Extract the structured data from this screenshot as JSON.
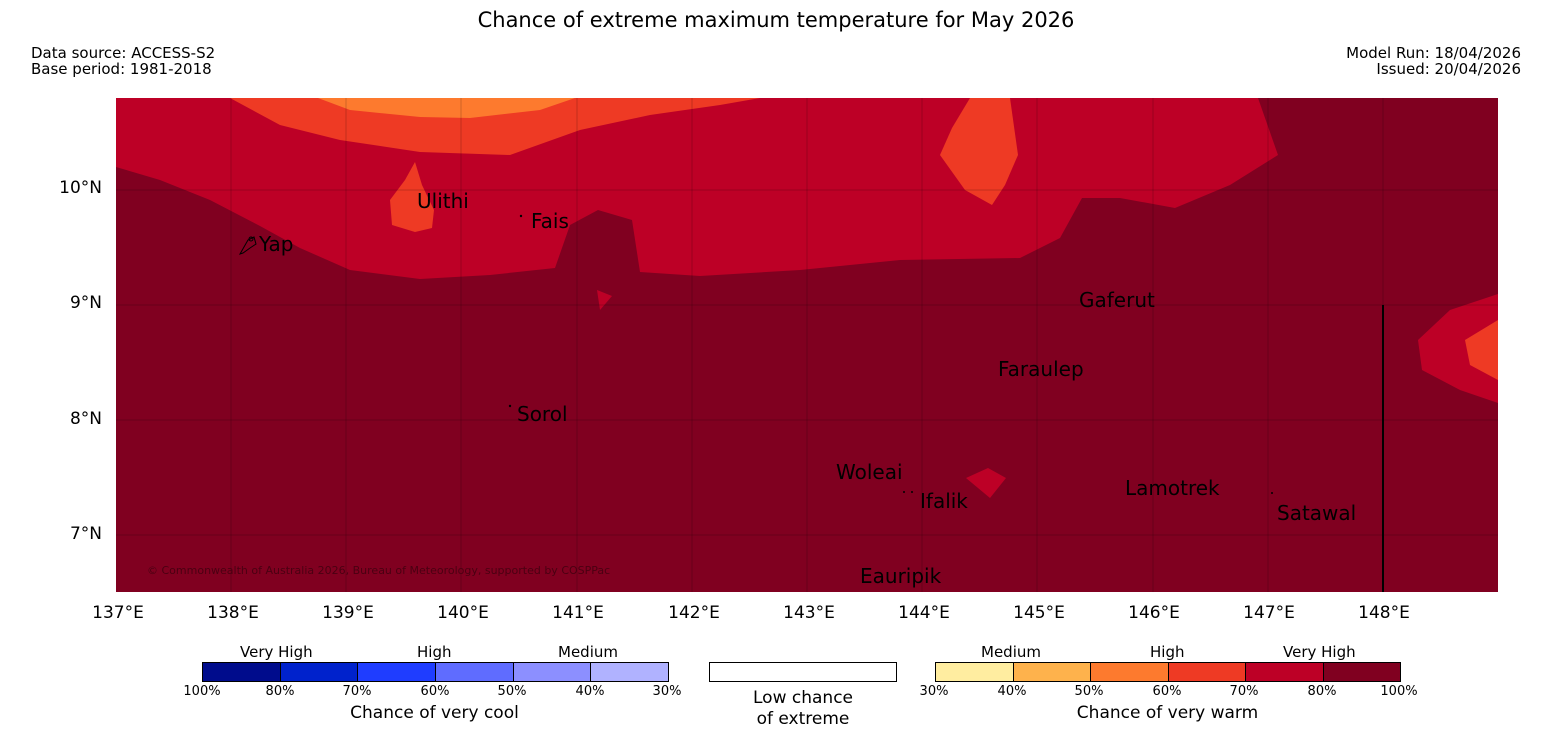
{
  "title": "Chance of extreme maximum temperature for May 2026",
  "meta": {
    "data_source": "Data source: ACCESS-S2",
    "base_period": "Base period: 1981-2018",
    "model_run": "Model Run: 18/04/2026",
    "issued": "Issued: 20/04/2026"
  },
  "map": {
    "copyright": "© Commonwealth of Australia 2026, Bureau of Meteorology, supported by COSPPac",
    "places": [
      "Yap",
      "Ulithi",
      "Fais",
      "Sorol",
      "Gaferut",
      "Faraulep",
      "Woleai",
      "Ifalik",
      "Lamotrek",
      "Satawal",
      "Eauripik"
    ],
    "lat_ticks": [
      "10°N",
      "9°N",
      "8°N",
      "7°N"
    ],
    "lon_ticks": [
      "137°E",
      "138°E",
      "139°E",
      "140°E",
      "141°E",
      "142°E",
      "143°E",
      "144°E",
      "145°E",
      "146°E",
      "147°E",
      "148°E"
    ]
  },
  "legend": {
    "cool": {
      "headings": [
        "Very High",
        "High",
        "Medium"
      ],
      "ticks": [
        "100%",
        "80%",
        "70%",
        "60%",
        "50%",
        "40%",
        "30%"
      ],
      "colors": [
        "#000c8c",
        "#0022cc",
        "#1f3dff",
        "#5f6cff",
        "#8c8fff",
        "#b0b2ff"
      ],
      "caption": "Chance of very cool"
    },
    "low": {
      "caption_line1": "Low chance",
      "caption_line2": "of extreme"
    },
    "warm": {
      "headings": [
        "Medium",
        "High",
        "Very High"
      ],
      "ticks": [
        "30%",
        "40%",
        "50%",
        "60%",
        "70%",
        "80%",
        "100%"
      ],
      "colors": [
        "#ffeda0",
        "#feb24c",
        "#fd7a2e",
        "#ee3a24",
        "#bd0026",
        "#800020"
      ],
      "caption": "Chance of very warm"
    }
  }
}
